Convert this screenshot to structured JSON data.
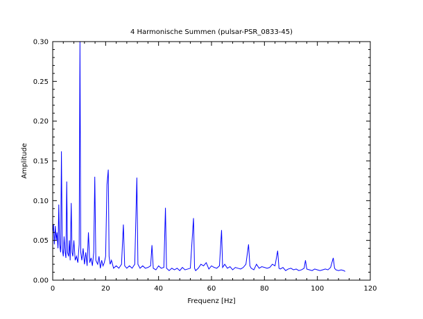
{
  "chart_data": {
    "type": "line",
    "title": "4 Harmonische Summen (pulsar-PSR_0833-45)",
    "xlabel": "Frequenz [Hz]",
    "ylabel": "Amplitude",
    "xlim": [
      0,
      120
    ],
    "ylim": [
      0,
      0.3
    ],
    "grid": false,
    "legend": "none",
    "x_ticks": [
      0,
      20,
      40,
      60,
      80,
      100,
      120
    ],
    "x_tick_labels": [
      "0",
      "20",
      "40",
      "60",
      "80",
      "100",
      "120"
    ],
    "y_ticks": [
      0,
      0.05,
      0.1,
      0.15,
      0.2,
      0.25,
      0.3
    ],
    "y_tick_labels": [
      "0.00",
      "0.05",
      "0.10",
      "0.15",
      "0.20",
      "0.25",
      "0.30"
    ],
    "series": [
      {
        "color": "#0000ff",
        "x": [
          0,
          0.3,
          0.6,
          1.0,
          1.3,
          1.6,
          2.0,
          2.3,
          2.6,
          3.0,
          3.3,
          3.6,
          4.0,
          4.3,
          4.7,
          5.0,
          5.3,
          5.6,
          6.0,
          6.3,
          6.6,
          7.0,
          7.3,
          7.6,
          8.0,
          8.5,
          9.0,
          9.5,
          10.0,
          10.3,
          10.6,
          11.0,
          11.5,
          12.0,
          12.5,
          13.0,
          13.5,
          14.0,
          14.5,
          15.0,
          15.5,
          15.9,
          16.3,
          17.0,
          17.5,
          18.0,
          18.5,
          19.0,
          19.5,
          20.0,
          20.5,
          21.0,
          21.3,
          21.7,
          22.2,
          23.0,
          24.0,
          25.0,
          26.0,
          26.7,
          27.2,
          28.0,
          29.0,
          30.0,
          31.0,
          31.8,
          32.2,
          33.0,
          34.0,
          35.0,
          36.0,
          37.0,
          37.5,
          38.0,
          39.0,
          40.0,
          41.0,
          42.0,
          42.6,
          43.0,
          44.0,
          45.0,
          46.0,
          47.0,
          48.0,
          49.0,
          50.0,
          51.0,
          52.0,
          53.2,
          53.6,
          54.0,
          55.0,
          56.0,
          57.0,
          58.0,
          59.0,
          60.0,
          61.0,
          62.0,
          63.0,
          63.8,
          64.2,
          65.0,
          66.0,
          67.0,
          68.0,
          69.0,
          70.0,
          71.0,
          72.0,
          73.0,
          74.0,
          74.5,
          75.0,
          76.0,
          77.0,
          78.0,
          79.0,
          80.0,
          81.0,
          82.0,
          83.0,
          84.0,
          85.0,
          85.5,
          86.0,
          87.0,
          88.0,
          89.0,
          90.0,
          91.0,
          92.0,
          93.0,
          94.0,
          95.0,
          95.5,
          96.0,
          97.0,
          98.0,
          99.0,
          100.0,
          101.0,
          102.0,
          103.0,
          104.0,
          105.0,
          106.0,
          106.5,
          107.0,
          108.0,
          109.0,
          110.0,
          110.5
        ],
        "y": [
          0.06,
          0.07,
          0.045,
          0.068,
          0.05,
          0.06,
          0.04,
          0.095,
          0.045,
          0.035,
          0.162,
          0.04,
          0.03,
          0.055,
          0.035,
          0.028,
          0.124,
          0.035,
          0.03,
          0.05,
          0.025,
          0.097,
          0.035,
          0.03,
          0.05,
          0.025,
          0.03,
          0.022,
          0.045,
          0.3,
          0.035,
          0.025,
          0.04,
          0.02,
          0.035,
          0.018,
          0.06,
          0.022,
          0.028,
          0.018,
          0.035,
          0.13,
          0.025,
          0.02,
          0.03,
          0.015,
          0.025,
          0.018,
          0.022,
          0.03,
          0.12,
          0.139,
          0.03,
          0.02,
          0.025,
          0.015,
          0.018,
          0.015,
          0.02,
          0.07,
          0.018,
          0.015,
          0.018,
          0.015,
          0.02,
          0.129,
          0.02,
          0.015,
          0.018,
          0.015,
          0.016,
          0.018,
          0.044,
          0.015,
          0.013,
          0.018,
          0.015,
          0.016,
          0.091,
          0.015,
          0.012,
          0.015,
          0.013,
          0.015,
          0.012,
          0.016,
          0.013,
          0.014,
          0.015,
          0.078,
          0.015,
          0.012,
          0.015,
          0.02,
          0.018,
          0.022,
          0.014,
          0.018,
          0.016,
          0.015,
          0.018,
          0.063,
          0.016,
          0.02,
          0.015,
          0.017,
          0.013,
          0.016,
          0.015,
          0.014,
          0.016,
          0.02,
          0.045,
          0.018,
          0.015,
          0.013,
          0.02,
          0.015,
          0.017,
          0.016,
          0.015,
          0.016,
          0.02,
          0.018,
          0.037,
          0.015,
          0.014,
          0.016,
          0.012,
          0.014,
          0.015,
          0.013,
          0.014,
          0.012,
          0.013,
          0.015,
          0.025,
          0.014,
          0.013,
          0.012,
          0.014,
          0.013,
          0.012,
          0.013,
          0.014,
          0.013,
          0.016,
          0.028,
          0.015,
          0.013,
          0.012,
          0.013,
          0.012,
          0.011
        ]
      }
    ]
  }
}
